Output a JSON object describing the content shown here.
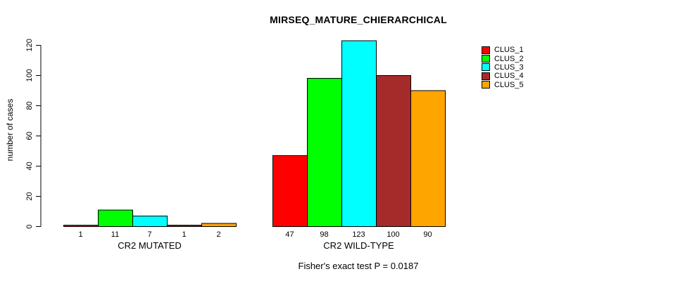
{
  "chart_data": {
    "type": "bar",
    "title": "MIRSEQ_MATURE_CHIERARCHICAL",
    "xlabel": "",
    "ylabel": "number of cases",
    "ylim": [
      0,
      120
    ],
    "yticks": [
      0,
      20,
      40,
      60,
      80,
      100,
      120
    ],
    "grid": false,
    "legend_position": "top-right",
    "series": [
      "CLUS_1",
      "CLUS_2",
      "CLUS_3",
      "CLUS_4",
      "CLUS_5"
    ],
    "colors": [
      "#FF0000",
      "#00FF00",
      "#00FFFF",
      "#A52A2A",
      "#FFA500"
    ],
    "groups": [
      {
        "label": "CR2 MUTATED",
        "values": [
          1,
          11,
          7,
          1,
          2
        ]
      },
      {
        "label": "CR2 WILD-TYPE",
        "values": [
          47,
          98,
          123,
          100,
          90
        ]
      }
    ],
    "bar_value_labels": true,
    "caption": "Fisher's exact test P = 0.0187"
  }
}
